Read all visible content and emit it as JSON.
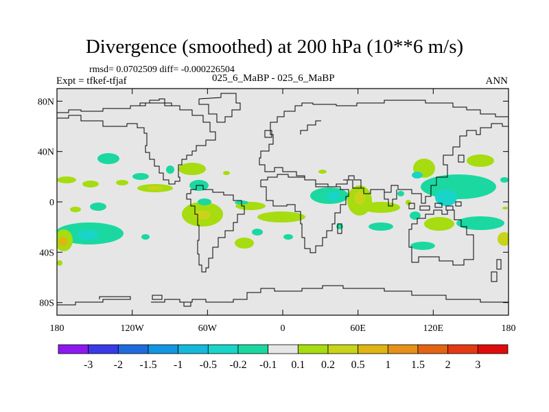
{
  "title": "Divergence (smoothed) at 200 hPa (10**6 m/s)",
  "stats_text": "rmsd= 0.0702509 diff= -0.000226504",
  "expt_text": "Expt = tfkef-tfjaf",
  "center_label": "025_6_MaBP - 025_6_MaBP",
  "season_label": "ANN",
  "lat_ticks": [
    "80N",
    "40N",
    "0",
    "40S",
    "80S"
  ],
  "lon_ticks": [
    "180",
    "120W",
    "60W",
    "0",
    "60E",
    "120E",
    "180"
  ],
  "colorbar": {
    "labels": [
      "-3",
      "-2",
      "-1.5",
      "-1",
      "-0.5",
      "-0.2",
      "-0.1",
      "0.1",
      "0.2",
      "0.5",
      "1",
      "1.5",
      "2",
      "3"
    ],
    "colors": [
      "#8c1aef",
      "#3a3ae6",
      "#1e6bdc",
      "#1196df",
      "#16b9d9",
      "#19d4c9",
      "#1bd8a1",
      "#e6e6e6",
      "#a6dc10",
      "#c8d41a",
      "#e0b414",
      "#e6901a",
      "#e46314",
      "#e33a12",
      "#e00c0c"
    ]
  },
  "map": {
    "background_color": "#e6e6e6",
    "lon_range": [
      -180,
      180
    ],
    "lat_range": [
      -90,
      90
    ]
  }
}
